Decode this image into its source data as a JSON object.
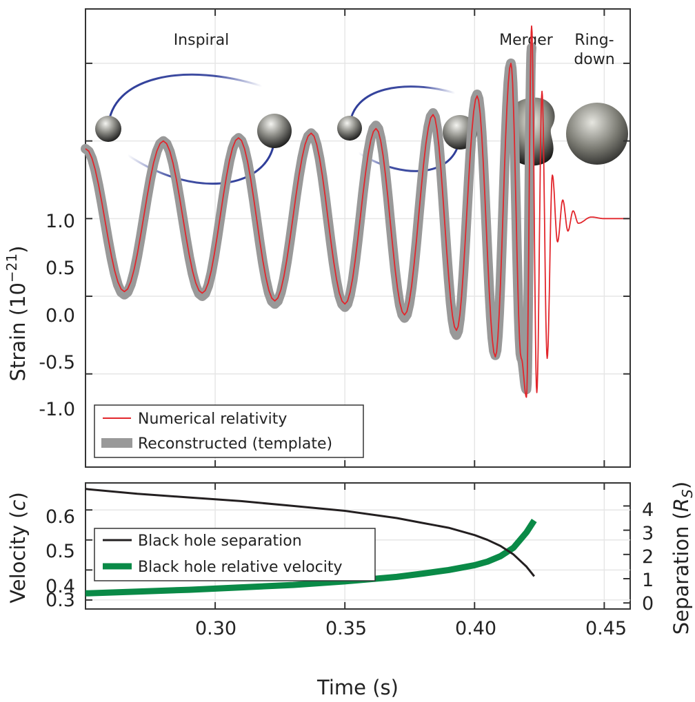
{
  "phase_labels": [
    "Inspiral",
    "Merger",
    "Ring-",
    "down"
  ],
  "colors": {
    "numerical": "#e2252b",
    "reconstructed": "#999999",
    "separation": "#231f20",
    "velocity": "#0a8a47",
    "orbit": "#2e3d99",
    "grid": "#e6e6e6",
    "axis": "#333333"
  },
  "chart_data": [
    {
      "type": "line",
      "panel": "strain",
      "title": "",
      "xlabel": "",
      "ylabel_main": "Strain (10",
      "ylabel_exp": "−21",
      "ylabel_close": ")",
      "xlim": [
        0.25,
        0.46
      ],
      "ylim": [
        -1.6,
        1.35
      ],
      "x_ticks": [
        0.3,
        0.35,
        0.4,
        0.45
      ],
      "y_ticks": [
        1.0,
        0.5,
        0.0,
        -0.5,
        -1.0
      ],
      "y_tick_labels": [
        "1.0",
        "0.5",
        "0.0",
        "-0.5",
        "-1.0"
      ],
      "grid": true,
      "legend_position": "bottom-left",
      "series": [
        {
          "name": "Numerical relativity",
          "x": [
            0.25,
            0.265,
            0.28,
            0.295,
            0.309,
            0.323,
            0.337,
            0.35,
            0.362,
            0.373,
            0.384,
            0.393,
            0.401,
            0.408,
            0.414,
            0.418,
            0.42,
            0.422,
            0.424,
            0.426,
            0.428,
            0.43,
            0.432,
            0.434,
            0.436,
            0.438,
            0.44,
            0.445,
            0.45,
            0.46
          ],
          "y": [
            0.45,
            -0.47,
            0.5,
            -0.48,
            0.52,
            -0.53,
            0.55,
            -0.55,
            0.58,
            -0.62,
            0.67,
            -0.72,
            0.79,
            -0.89,
            1.0,
            -0.9,
            -1.15,
            1.24,
            -1.12,
            0.82,
            -0.9,
            0.28,
            -0.15,
            0.12,
            -0.08,
            0.05,
            -0.03,
            0.01,
            0.0,
            0.0
          ]
        },
        {
          "name": "Reconstructed (template)",
          "x": [
            0.25,
            0.265,
            0.28,
            0.295,
            0.309,
            0.323,
            0.337,
            0.35,
            0.362,
            0.373,
            0.384,
            0.393,
            0.401,
            0.408,
            0.414,
            0.418,
            0.42,
            0.422
          ],
          "y": [
            0.45,
            -0.49,
            0.5,
            -0.5,
            0.52,
            -0.55,
            0.55,
            -0.57,
            0.6,
            -0.64,
            0.68,
            -0.75,
            0.8,
            -0.88,
            1.0,
            -0.9,
            -1.1,
            1.1
          ]
        }
      ]
    },
    {
      "type": "line",
      "panel": "velocity-separation",
      "title": "",
      "xlabel": "Time (s)",
      "ylabel_left_main": "Velocity (",
      "ylabel_left_unit": "c",
      "ylabel_left_close": ")",
      "ylabel_right_main": "Separation (",
      "ylabel_right_unit": "R",
      "ylabel_right_sub": "S",
      "ylabel_right_close": ")",
      "xlim": [
        0.25,
        0.46
      ],
      "ylim_left": [
        0.27,
        0.69
      ],
      "ylim_right": [
        -0.25,
        4.95
      ],
      "x_ticks": [
        0.3,
        0.35,
        0.4,
        0.45
      ],
      "x_tick_labels": [
        "0.30",
        "0.35",
        "0.40",
        "0.45"
      ],
      "y_ticks_left": [
        0.6,
        0.5,
        0.4,
        0.3
      ],
      "y_tick_labels_left": [
        "0.6",
        "0.5",
        "0.4",
        "0.3"
      ],
      "y_ticks_right": [
        4,
        3,
        2,
        1,
        0
      ],
      "y_tick_labels_right": [
        "4",
        "3",
        "2",
        "1",
        "0"
      ],
      "grid": true,
      "legend_position": "center-left",
      "series": [
        {
          "name": "Black hole separation",
          "axis": "right",
          "x": [
            0.25,
            0.27,
            0.29,
            0.31,
            0.33,
            0.35,
            0.37,
            0.38,
            0.39,
            0.4,
            0.405,
            0.41,
            0.415,
            0.42,
            0.423
          ],
          "y": [
            4.7,
            4.5,
            4.35,
            4.2,
            4.0,
            3.8,
            3.5,
            3.3,
            3.1,
            2.8,
            2.6,
            2.35,
            2.0,
            1.5,
            1.1
          ]
        },
        {
          "name": "Black hole relative velocity",
          "axis": "left",
          "x": [
            0.25,
            0.27,
            0.29,
            0.31,
            0.33,
            0.35,
            0.37,
            0.38,
            0.39,
            0.4,
            0.405,
            0.41,
            0.415,
            0.42,
            0.423
          ],
          "y": [
            0.322,
            0.328,
            0.334,
            0.342,
            0.35,
            0.362,
            0.377,
            0.388,
            0.4,
            0.416,
            0.428,
            0.446,
            0.474,
            0.525,
            0.565
          ]
        }
      ]
    }
  ]
}
